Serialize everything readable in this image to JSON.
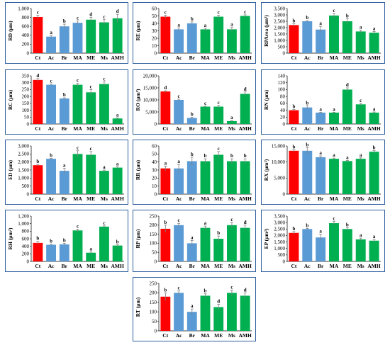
{
  "colors": {
    "control": "#ff0000",
    "group2": "#5b9bd5",
    "group3": "#00b050",
    "frame": "#2e5f9e",
    "error": "#7f7f7f"
  },
  "chart_data": [
    {
      "type": "bar",
      "ylabel": "RD (µm)",
      "categories": [
        "Ct",
        "Ac",
        "Br",
        "MA",
        "ME",
        "Ms",
        "AMH"
      ],
      "values": [
        810,
        370,
        600,
        680,
        750,
        690,
        780
      ],
      "errors": [
        40,
        30,
        50,
        40,
        50,
        60,
        90
      ],
      "letters": [
        "c",
        "a",
        "b",
        "c",
        "d",
        "c",
        "d"
      ],
      "ylim": [
        0,
        1000
      ],
      "yticks": [
        0,
        200,
        400,
        600,
        800,
        1000
      ],
      "colors": [
        "#ff0000",
        "#5b9bd5",
        "#5b9bd5",
        "#5b9bd5",
        "#00b050",
        "#00b050",
        "#00b050"
      ]
    },
    {
      "type": "bar",
      "ylabel": "RE (µm)",
      "categories": [
        "Ct",
        "Ac",
        "Br",
        "MA",
        "ME",
        "Ms",
        "AMH"
      ],
      "values": [
        49,
        32,
        40,
        32,
        49,
        32,
        50
      ],
      "errors": [
        2,
        2,
        2,
        1.5,
        2,
        3,
        1.5
      ],
      "letters": [
        "c",
        "a",
        "b",
        "a",
        "c",
        "a",
        "c"
      ],
      "ylim": [
        0,
        60
      ],
      "yticks": [
        0,
        10,
        20,
        30,
        40,
        50,
        60
      ],
      "colors": [
        "#ff0000",
        "#5b9bd5",
        "#5b9bd5",
        "#00b050",
        "#00b050",
        "#00b050",
        "#00b050"
      ]
    },
    {
      "type": "bar",
      "ylabel": "RPArea (µm²)",
      "categories": [
        "Ct",
        "Ac",
        "Br",
        "MA",
        "ME",
        "Ms",
        "AMH"
      ],
      "values": [
        2200,
        2500,
        1850,
        2950,
        2500,
        1700,
        1600
      ],
      "errors": [
        100,
        50,
        250,
        150,
        200,
        100,
        100
      ],
      "letters": [
        "b",
        "b",
        "a",
        "c",
        "b",
        "a",
        "a"
      ],
      "ylim": [
        0,
        3500
      ],
      "yticks": [
        0,
        500,
        1000,
        1500,
        2000,
        2500,
        3000,
        3500
      ],
      "colors": [
        "#ff0000",
        "#5b9bd5",
        "#5b9bd5",
        "#00b050",
        "#00b050",
        "#00b050",
        "#00b050"
      ]
    },
    {
      "type": "bar",
      "ylabel": "RC (µm)",
      "categories": [
        "Ct",
        "Ac",
        "Br",
        "MA",
        "ME",
        "Ms",
        "AMH"
      ],
      "values": [
        320,
        285,
        185,
        285,
        230,
        290,
        40
      ],
      "errors": [
        10,
        5,
        5,
        10,
        20,
        15,
        5
      ],
      "letters": [
        "d",
        "c",
        "b",
        "c",
        "c",
        "c",
        "a"
      ],
      "ylim": [
        0,
        350
      ],
      "yticks": [
        0,
        50,
        100,
        150,
        200,
        250,
        300,
        350
      ],
      "colors": [
        "#ff0000",
        "#5b9bd5",
        "#5b9bd5",
        "#00b050",
        "#00b050",
        "#00b050",
        "#00b050"
      ]
    },
    {
      "type": "bar",
      "ylabel": "RO (µm²)",
      "categories": [
        "Ct",
        "Ac",
        "Br",
        "MA",
        "ME",
        "Ms",
        "AMH"
      ],
      "values": [
        13500,
        10000,
        2500,
        7200,
        7200,
        1200,
        12500
      ],
      "errors": [
        300,
        300,
        300,
        200,
        500,
        200,
        800
      ],
      "letters": [
        "d",
        "c",
        "b",
        "c",
        "c",
        "a",
        "d"
      ],
      "ylim": [
        0,
        20000
      ],
      "yticks": [
        0,
        5000,
        10000,
        15000,
        20000
      ],
      "colors": [
        "#ff0000",
        "#5b9bd5",
        "#5b9bd5",
        "#00b050",
        "#00b050",
        "#00b050",
        "#00b050"
      ]
    },
    {
      "type": "bar",
      "ylabel": "RN (µm)",
      "categories": [
        "Ct",
        "Ac",
        "Br",
        "MA",
        "ME",
        "Ms",
        "AMH"
      ],
      "values": [
        40,
        48,
        33,
        33,
        100,
        57,
        33
      ],
      "errors": [
        2,
        5,
        1,
        1,
        5,
        3,
        2
      ],
      "letters": [
        "b",
        "b",
        "a",
        "a",
        "d",
        "c",
        "a"
      ],
      "ylim": [
        0,
        140
      ],
      "yticks": [
        0,
        20,
        40,
        60,
        80,
        100,
        120,
        140
      ],
      "colors": [
        "#ff0000",
        "#5b9bd5",
        "#5b9bd5",
        "#00b050",
        "#00b050",
        "#00b050",
        "#00b050"
      ]
    },
    {
      "type": "bar",
      "ylabel": "ED (µm)",
      "categories": [
        "Ct",
        "Ac",
        "Br",
        "MA",
        "ME",
        "Ms",
        "AMH"
      ],
      "values": [
        1800,
        2200,
        1450,
        2500,
        2450,
        1450,
        1650
      ],
      "errors": [
        50,
        30,
        150,
        200,
        200,
        50,
        50
      ],
      "letters": [
        "b",
        "b",
        "a",
        "c",
        "c",
        "a",
        "a"
      ],
      "ylim": [
        0,
        3000
      ],
      "yticks": [
        0,
        500,
        1000,
        1500,
        2000,
        2500,
        3000
      ],
      "colors": [
        "#ff0000",
        "#5b9bd5",
        "#5b9bd5",
        "#00b050",
        "#00b050",
        "#00b050",
        "#00b050"
      ]
    },
    {
      "type": "bar",
      "ylabel": "RR (µm)",
      "categories": [
        "Ct",
        "Ac",
        "Br",
        "MA",
        "ME",
        "Ms",
        "AMH"
      ],
      "values": [
        32,
        32,
        41,
        41,
        49,
        41,
        41
      ],
      "errors": [
        3,
        5,
        5,
        3,
        4,
        3,
        3
      ],
      "letters": [
        "a",
        "a",
        "b",
        "b",
        "c",
        "b",
        "b"
      ],
      "ylim": [
        0,
        60
      ],
      "yticks": [
        0,
        10,
        20,
        30,
        40,
        50,
        60
      ],
      "colors": [
        "#ff0000",
        "#5b9bd5",
        "#5b9bd5",
        "#00b050",
        "#00b050",
        "#00b050",
        "#00b050"
      ]
    },
    {
      "type": "bar",
      "ylabel": "RX (µm²)",
      "categories": [
        "Ct",
        "Ac",
        "Br",
        "MA",
        "ME",
        "Ms",
        "AMH"
      ],
      "values": [
        13500,
        13500,
        11500,
        11000,
        10300,
        11000,
        13200
      ],
      "errors": [
        300,
        1000,
        400,
        200,
        200,
        300,
        400
      ],
      "letters": [
        "b",
        "b",
        "a",
        "a",
        "a",
        "a",
        "b"
      ],
      "ylim": [
        0,
        15000
      ],
      "yticks": [
        0,
        5000,
        10000,
        15000
      ],
      "colors": [
        "#ff0000",
        "#5b9bd5",
        "#5b9bd5",
        "#00b050",
        "#00b050",
        "#00b050",
        "#00b050"
      ]
    },
    {
      "type": "bar",
      "ylabel": "RH (µm²)",
      "categories": [
        "Ct",
        "Ac",
        "Br",
        "MA",
        "ME",
        "Ms",
        "AMH"
      ],
      "values": [
        490,
        440,
        450,
        820,
        230,
        920,
        420
      ],
      "errors": [
        40,
        20,
        30,
        30,
        20,
        20,
        20
      ],
      "letters": [
        "b",
        "b",
        "b",
        "c",
        "a",
        "c",
        "b"
      ],
      "ylim": [
        0,
        1200
      ],
      "yticks": [
        0,
        200,
        400,
        600,
        800,
        1000,
        1200
      ],
      "colors": [
        "#ff0000",
        "#5b9bd5",
        "#5b9bd5",
        "#00b050",
        "#00b050",
        "#00b050",
        "#00b050"
      ]
    },
    {
      "type": "bar",
      "ylabel": "RP (µm)",
      "categories": [
        "Ct",
        "Ac",
        "Br",
        "MA",
        "ME",
        "Ms",
        "AMH"
      ],
      "values": [
        180,
        200,
        100,
        185,
        125,
        200,
        185
      ],
      "errors": [
        20,
        10,
        15,
        10,
        15,
        15,
        15
      ],
      "letters": [
        "b",
        "c",
        "a",
        "a",
        "b",
        "c",
        "d"
      ],
      "ylim": [
        0,
        250
      ],
      "yticks": [
        0,
        50,
        100,
        150,
        200,
        250
      ],
      "colors": [
        "#ff0000",
        "#5b9bd5",
        "#5b9bd5",
        "#00b050",
        "#00b050",
        "#00b050",
        "#00b050"
      ]
    },
    {
      "type": "bar",
      "ylabel": "EP (µm²)",
      "categories": [
        "Ct",
        "Ac",
        "Br",
        "MA",
        "ME",
        "Ms",
        "AMH"
      ],
      "values": [
        2200,
        2500,
        1850,
        2950,
        2500,
        1700,
        1600
      ],
      "errors": [
        100,
        50,
        250,
        150,
        100,
        100,
        100
      ],
      "letters": [
        "b",
        "b",
        "a",
        "c",
        "b",
        "a",
        "a"
      ],
      "ylim": [
        0,
        3500
      ],
      "yticks": [
        0,
        500,
        1000,
        1500,
        2000,
        2500,
        3000,
        3500
      ],
      "colors": [
        "#ff0000",
        "#5b9bd5",
        "#5b9bd5",
        "#00b050",
        "#00b050",
        "#00b050",
        "#00b050"
      ]
    },
    {
      "type": "bar",
      "ylabel": "RT (µm)",
      "categories": [
        "Ct",
        "Ac",
        "Br",
        "MA",
        "ME",
        "Ms",
        "AMH"
      ],
      "values": [
        180,
        200,
        100,
        185,
        125,
        200,
        185
      ],
      "errors": [
        20,
        10,
        15,
        10,
        15,
        15,
        15
      ],
      "letters": [
        "b",
        "c",
        "a",
        "b",
        "d",
        "c",
        "d"
      ],
      "ylim": [
        0,
        250
      ],
      "yticks": [
        0,
        50,
        100,
        150,
        200,
        250
      ],
      "colors": [
        "#ff0000",
        "#5b9bd5",
        "#5b9bd5",
        "#00b050",
        "#00b050",
        "#00b050",
        "#00b050"
      ]
    }
  ]
}
